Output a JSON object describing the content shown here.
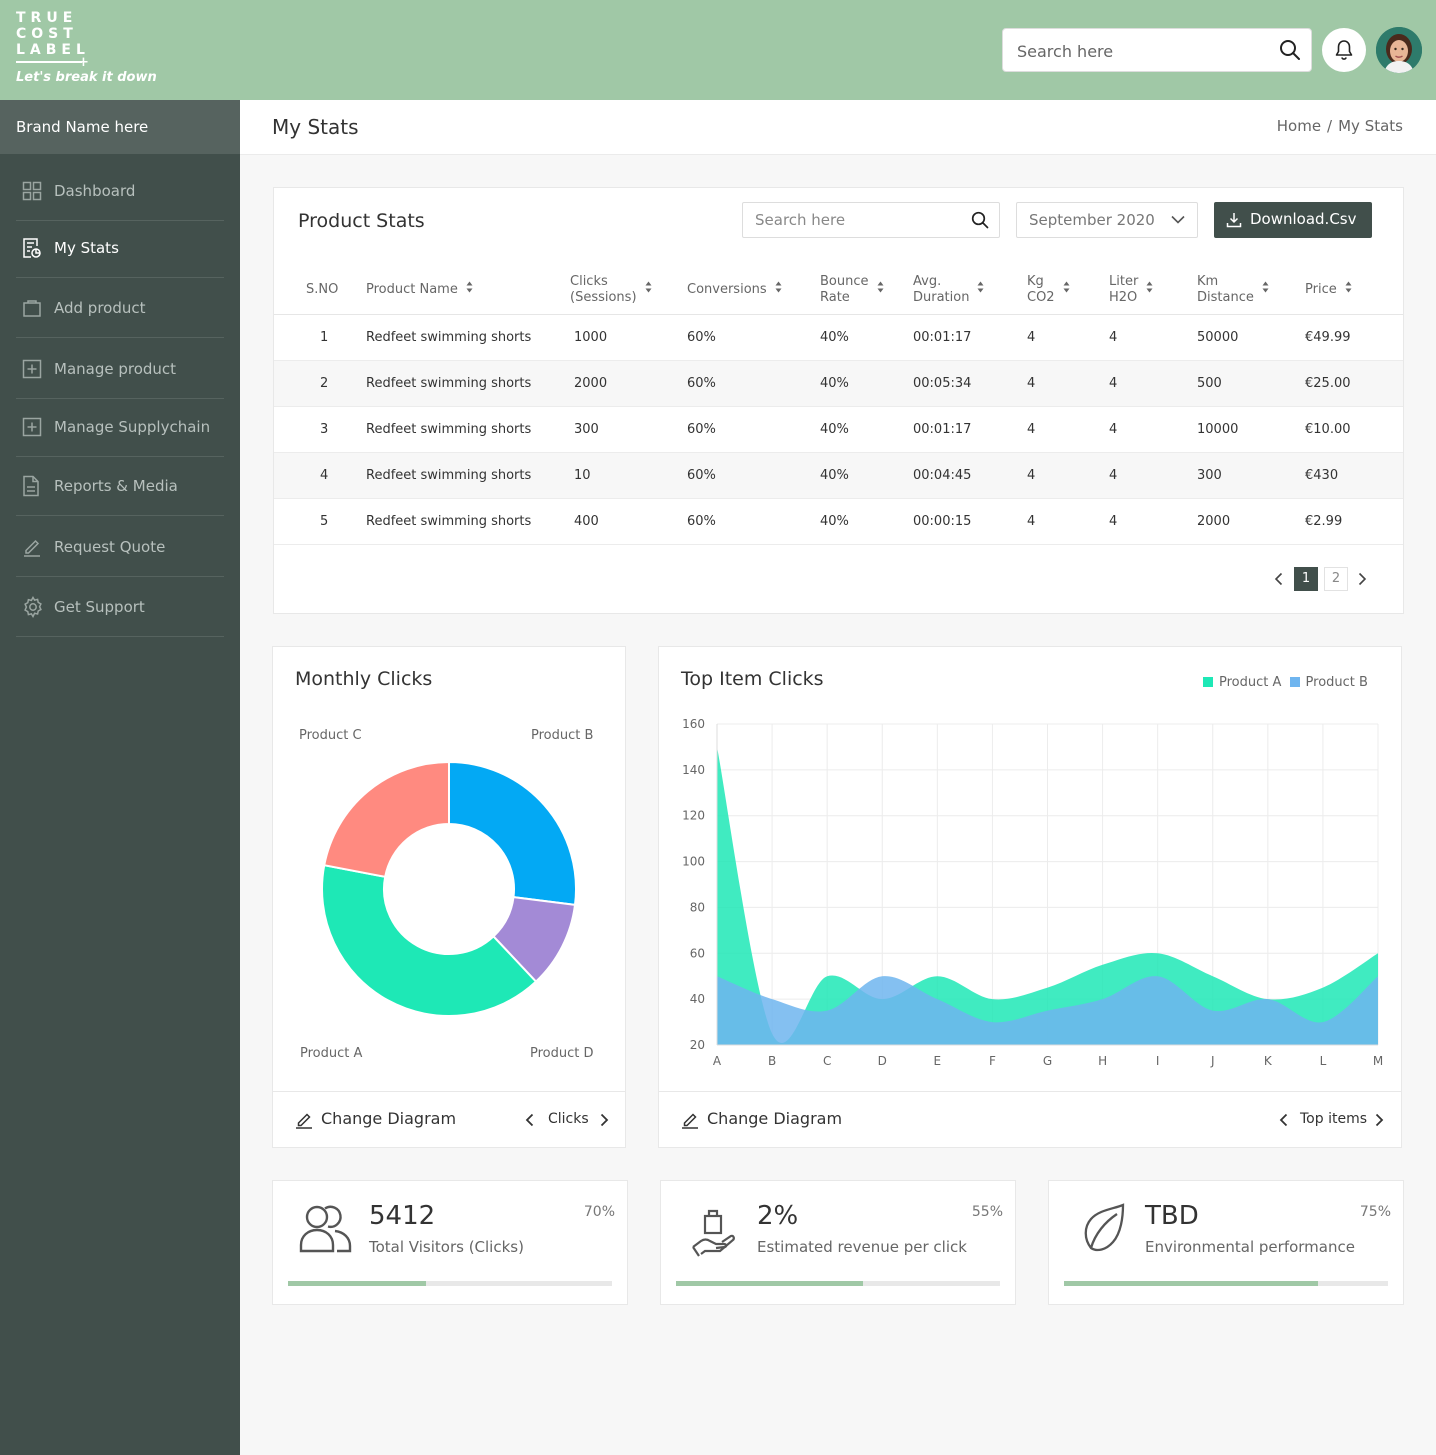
{
  "logo": {
    "lines": [
      "TRUE",
      "COST",
      "LABEL"
    ],
    "tagline": "Let's break it down"
  },
  "header": {
    "search_placeholder": "Search here",
    "bell_icon": "bell-icon",
    "search_icon": "search-icon"
  },
  "sidebar": {
    "brand": "Brand Name here",
    "items": [
      {
        "label": "Dashboard",
        "icon": "grid-icon",
        "active": false
      },
      {
        "label": "My Stats",
        "icon": "stats-doc-icon",
        "active": true
      },
      {
        "label": "Add product",
        "icon": "bag-icon",
        "active": false
      },
      {
        "label": "Manage product",
        "icon": "plus-square-icon",
        "active": false
      },
      {
        "label": "Manage Supplychain",
        "icon": "plus-square-icon",
        "active": false
      },
      {
        "label": "Reports & Media",
        "icon": "document-icon",
        "active": false
      },
      {
        "label": "Request Quote",
        "icon": "pen-icon",
        "active": false
      },
      {
        "label": "Get Support",
        "icon": "gear-icon",
        "active": false
      }
    ]
  },
  "page": {
    "title": "My Stats",
    "breadcrumb": [
      "Home",
      "My Stats"
    ]
  },
  "product_stats": {
    "title": "Product Stats",
    "search_placeholder": "Search here",
    "date_selected": "September 2020",
    "download_label": "Download.Csv",
    "columns": [
      {
        "l1": "S.NO",
        "l2": "",
        "sort": false
      },
      {
        "l1": "Product Name",
        "l2": "",
        "sort": true
      },
      {
        "l1": "Clicks",
        "l2": "(Sessions)",
        "sort": true
      },
      {
        "l1": "Conversions",
        "l2": "",
        "sort": true
      },
      {
        "l1": "Bounce",
        "l2": "Rate",
        "sort": true
      },
      {
        "l1": "Avg.",
        "l2": "Duration",
        "sort": true
      },
      {
        "l1": "Kg",
        "l2": "CO2",
        "sort": true
      },
      {
        "l1": "Liter",
        "l2": "H2O",
        "sort": true
      },
      {
        "l1": "Km",
        "l2": "Distance",
        "sort": true
      },
      {
        "l1": "Price",
        "l2": "",
        "sort": true
      }
    ],
    "rows": [
      [
        "1",
        "Redfeet swimming shorts",
        "1000",
        "60%",
        "40%",
        "00:01:17",
        "4",
        "4",
        "50000",
        "€49.99"
      ],
      [
        "2",
        "Redfeet swimming shorts",
        "2000",
        "60%",
        "40%",
        "00:05:34",
        "4",
        "4",
        "500",
        "€25.00"
      ],
      [
        "3",
        "Redfeet swimming shorts",
        "300",
        "60%",
        "40%",
        "00:01:17",
        "4",
        "4",
        "10000",
        "€10.00"
      ],
      [
        "4",
        "Redfeet swimming shorts",
        "10",
        "60%",
        "40%",
        "00:04:45",
        "4",
        "4",
        "300",
        "€430"
      ],
      [
        "5",
        "Redfeet swimming shorts",
        "400",
        "60%",
        "40%",
        "00:00:15",
        "4",
        "4",
        "2000",
        "€2.99"
      ]
    ],
    "pagination": {
      "pages": [
        "1",
        "2"
      ],
      "current": "1"
    }
  },
  "monthly_clicks": {
    "title": "Monthly Clicks",
    "footer_action": "Change Diagram",
    "footer_nav": "Clicks"
  },
  "top_items": {
    "title": "Top Item Clicks",
    "footer_action": "Change Diagram",
    "footer_nav": "Top items"
  },
  "kpis": [
    {
      "value": "5412",
      "label": "Total Visitors (Clicks)",
      "percent_label": "70%",
      "progress": 0.425,
      "icon": "users-icon"
    },
    {
      "value": "2%",
      "label": "Estimated revenue per click",
      "percent_label": "55%",
      "progress": 0.578,
      "icon": "hand-bag-icon"
    },
    {
      "value": "TBD",
      "label": "Environmental performance",
      "percent_label": "75%",
      "progress": 0.785,
      "icon": "leaf-icon"
    }
  ],
  "colors": {
    "header_bg": "#a0c8a6",
    "sidebar_bg": "#414f4b",
    "accent_dark": "#414f4b",
    "progress": "#a0c8a6",
    "product_a": "#1ee8b6",
    "product_b": "#6fb5ef",
    "product_c": "#ff8a80",
    "product_d": "#a38ad6",
    "product_b_pie": "#03a9f4"
  },
  "chart_data": [
    {
      "type": "pie",
      "categories": [
        "Product B",
        "Product D",
        "Product A",
        "Product C"
      ],
      "values": [
        27,
        11,
        40,
        22
      ],
      "donut": true,
      "legend": "corner labels"
    },
    {
      "type": "area",
      "x": [
        "A",
        "B",
        "C",
        "D",
        "E",
        "F",
        "G",
        "H",
        "I",
        "J",
        "K",
        "L",
        "M"
      ],
      "series": [
        {
          "name": "Product A",
          "values": [
            150,
            25,
            50,
            40,
            50,
            40,
            45,
            55,
            60,
            50,
            40,
            45,
            60
          ]
        },
        {
          "name": "Product B",
          "values": [
            50,
            40,
            35,
            50,
            40,
            30,
            35,
            40,
            50,
            35,
            40,
            30,
            50
          ]
        }
      ],
      "ylim": [
        20,
        160
      ],
      "yticks": [
        20,
        40,
        60,
        80,
        100,
        120,
        140,
        160
      ],
      "grid": true,
      "legend": "top-right"
    }
  ]
}
